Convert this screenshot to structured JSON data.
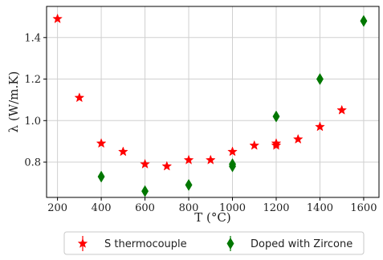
{
  "chart_data": {
    "type": "scatter",
    "xlabel": "T (°C)",
    "ylabel": "λ (W/m.K)",
    "xlim": [
      150,
      1670
    ],
    "ylim": [
      0.63,
      1.55
    ],
    "xticks": [
      200,
      400,
      600,
      800,
      1000,
      1200,
      1400,
      1600
    ],
    "yticks": [
      0.8,
      1.0,
      1.2,
      1.4
    ],
    "grid": true,
    "legend_position": "bottom",
    "series": [
      {
        "name": "S thermocouple",
        "marker": "star",
        "color": "#ff0000",
        "x": [
          200,
          300,
          400,
          500,
          600,
          700,
          800,
          900,
          1000,
          1100,
          1200,
          1200,
          1300,
          1400,
          1500
        ],
        "y": [
          1.49,
          1.11,
          0.89,
          0.85,
          0.79,
          0.78,
          0.81,
          0.81,
          0.85,
          0.88,
          0.89,
          0.88,
          0.91,
          0.97,
          1.05
        ]
      },
      {
        "name": "Doped with Zircone",
        "marker": "diamond",
        "color": "#007700",
        "x": [
          400,
          600,
          800,
          1000,
          1000,
          1200,
          1400,
          1600
        ],
        "y": [
          0.73,
          0.66,
          0.69,
          0.78,
          0.79,
          1.02,
          1.2,
          1.48
        ]
      }
    ]
  }
}
